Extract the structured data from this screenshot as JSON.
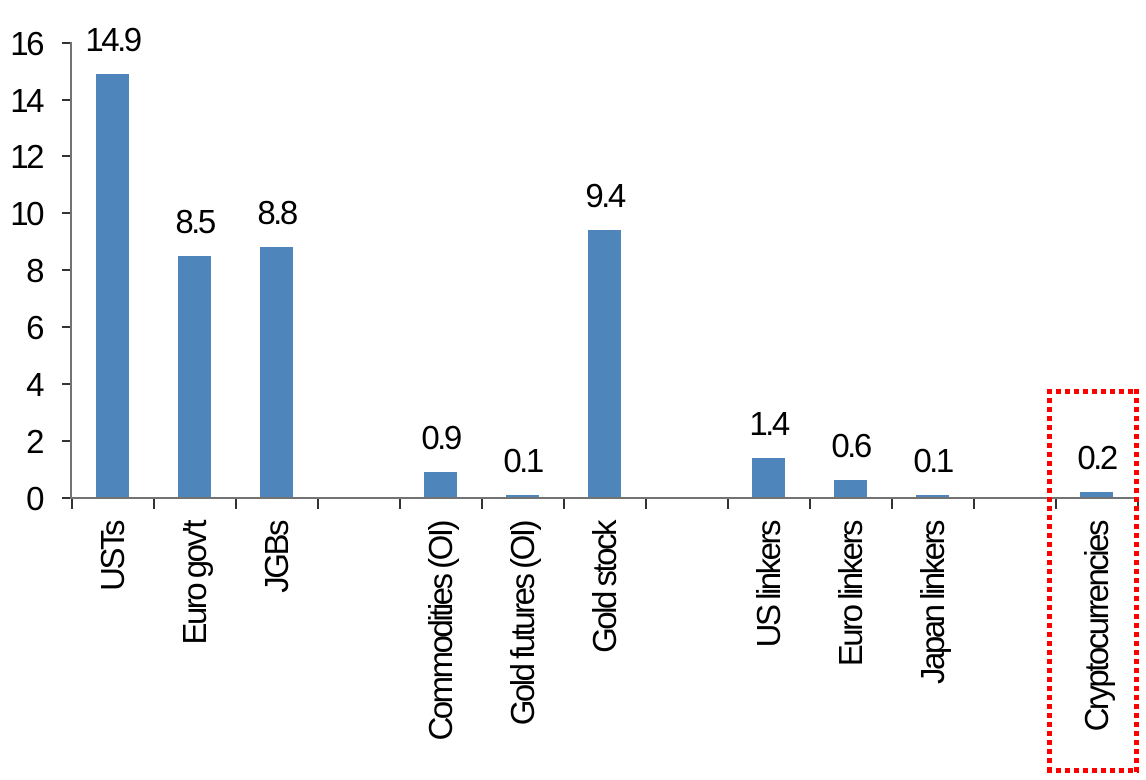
{
  "chart_data": {
    "type": "bar",
    "title": "",
    "xlabel": "",
    "ylabel": "",
    "categories": [
      "USTs",
      "Euro gov't",
      "JGBs",
      "Commodities (OI)",
      "Gold futures (OI)",
      "Gold stock",
      "US linkers",
      "Euro linkers",
      "Japan linkers",
      "Cryptocurrencies"
    ],
    "values": [
      14.9,
      8.5,
      8.8,
      0.9,
      0.1,
      9.4,
      1.4,
      0.6,
      0.1,
      0.2
    ],
    "data_labels": [
      "14.9",
      "8.5",
      "8.8",
      "0.9",
      "0.1",
      "9.4",
      "1.4",
      "0.6",
      "0.1",
      "0.2"
    ],
    "groups": [
      [
        "USTs",
        "Euro gov't",
        "JGBs"
      ],
      [
        "Commodities (OI)",
        "Gold futures (OI)",
        "Gold stock"
      ],
      [
        "US linkers",
        "Euro linkers",
        "Japan linkers"
      ],
      [
        "Cryptocurrencies"
      ]
    ],
    "ylim": [
      0,
      16
    ],
    "yticks": [
      0,
      2,
      4,
      6,
      8,
      10,
      12,
      14,
      16
    ],
    "grid": false,
    "legend_position": "none",
    "bar_color": "#4E86BC",
    "axis_color": "#737373",
    "tick_color": "#333333",
    "label_color": "#000000",
    "highlight": {
      "category": "Cryptocurrencies",
      "style": "dotted-box",
      "color": "#FF0000"
    }
  }
}
